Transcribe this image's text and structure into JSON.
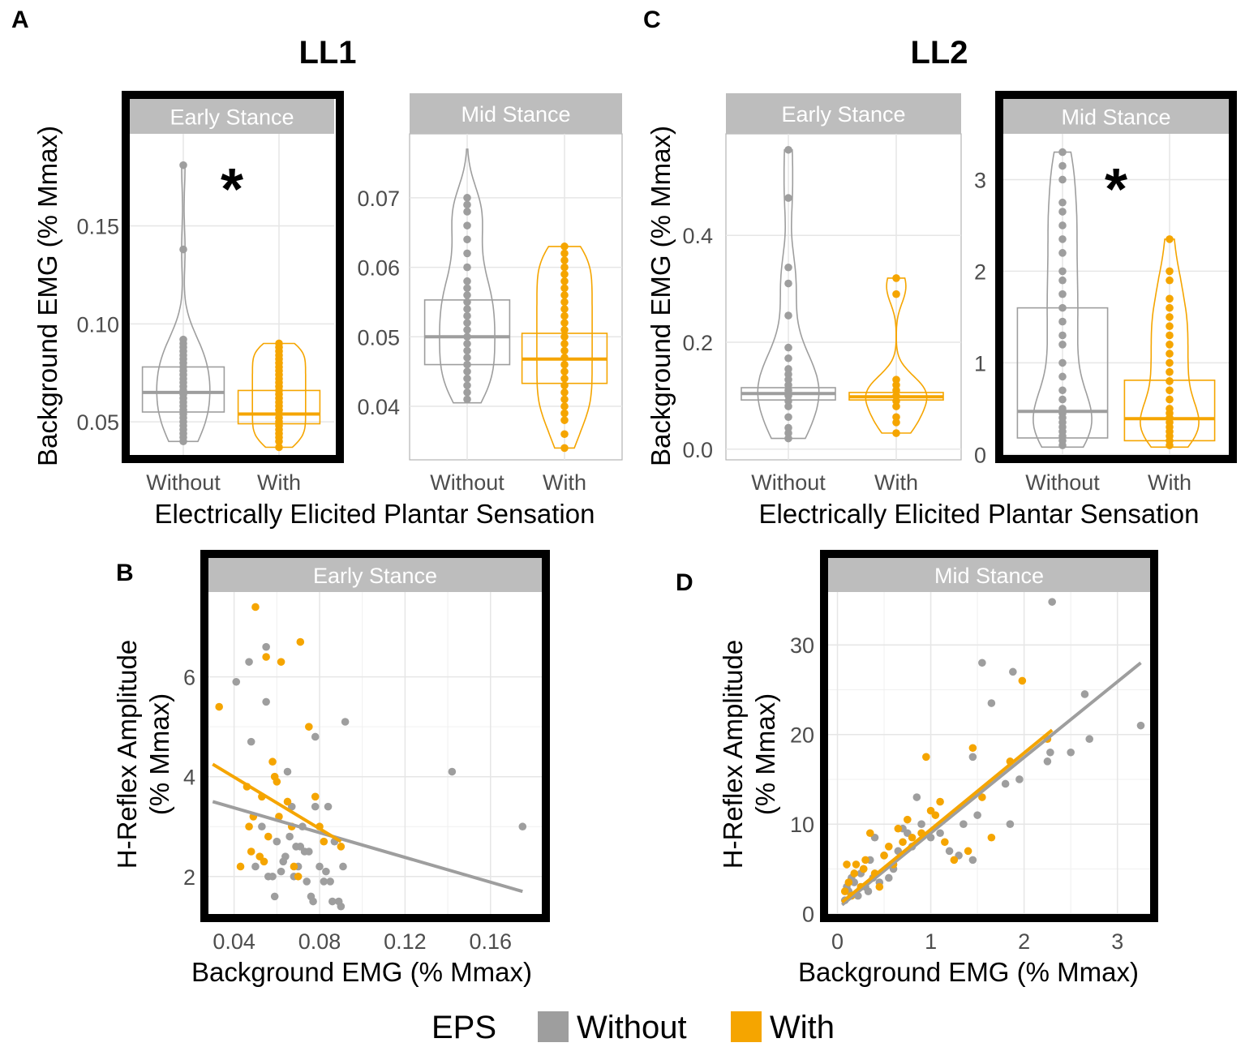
{
  "colors": {
    "without": "#9e9e9e",
    "with": "#f5a500",
    "strip": "#bdbdbd",
    "grid": "#e6e6e6",
    "axis": "#4d4d4d",
    "frame": "#000000"
  },
  "panel_letters": {
    "A": "A",
    "B": "B",
    "C": "C",
    "D": "D"
  },
  "groups": {
    "ll1": "LL1",
    "ll2": "LL2"
  },
  "significance_mark": "*",
  "shared_xlabel": "Electrically Elicited Plantar Sensation",
  "violin_ylabel": "Background EMG (% Mmax)",
  "scatter_ylabel_line1": "H-Reflex Amplitude",
  "scatter_ylabel_line2": "(% Mmax)",
  "scatter_xlabel": "Background EMG (% Mmax)",
  "legend": {
    "title": "EPS",
    "items": [
      {
        "label": "Without",
        "color": "#9e9e9e"
      },
      {
        "label": "With",
        "color": "#f5a500"
      }
    ]
  },
  "chart_data": [
    {
      "id": "A1",
      "type": "violin+box",
      "panel": "A",
      "strip": "Early Stance",
      "significant": true,
      "highlighted": true,
      "ylim": [
        0.031,
        0.197
      ],
      "yticks": [
        0.05,
        0.1,
        0.15
      ],
      "ytick_labels": [
        "0.05",
        "0.10",
        "0.15"
      ],
      "categories": [
        "Without",
        "With"
      ],
      "series": [
        {
          "name": "Without",
          "min": 0.04,
          "q1": 0.055,
          "median": 0.065,
          "q3": 0.078,
          "max": 0.181,
          "points": [
            0.04,
            0.042,
            0.044,
            0.046,
            0.048,
            0.05,
            0.052,
            0.054,
            0.056,
            0.058,
            0.06,
            0.062,
            0.064,
            0.066,
            0.068,
            0.07,
            0.072,
            0.074,
            0.076,
            0.078,
            0.08,
            0.082,
            0.084,
            0.086,
            0.088,
            0.09,
            0.092,
            0.138,
            0.181
          ]
        },
        {
          "name": "With",
          "min": 0.037,
          "q1": 0.049,
          "median": 0.054,
          "q3": 0.066,
          "max": 0.09,
          "points": [
            0.037,
            0.04,
            0.042,
            0.044,
            0.046,
            0.048,
            0.05,
            0.052,
            0.054,
            0.056,
            0.058,
            0.06,
            0.062,
            0.064,
            0.066,
            0.068,
            0.07,
            0.072,
            0.074,
            0.076,
            0.078,
            0.08,
            0.082,
            0.084,
            0.086,
            0.088,
            0.09
          ]
        }
      ]
    },
    {
      "id": "A2",
      "type": "violin+box",
      "panel": "A",
      "strip": "Mid Stance",
      "significant": false,
      "highlighted": false,
      "ylim": [
        0.0323,
        0.0792
      ],
      "yticks": [
        0.04,
        0.05,
        0.06,
        0.07
      ],
      "ytick_labels": [
        "0.04",
        "0.05",
        "0.06",
        "0.07"
      ],
      "categories": [
        "Without",
        "With"
      ],
      "series": [
        {
          "name": "Without",
          "min": 0.0405,
          "q1": 0.046,
          "median": 0.05,
          "q3": 0.0553,
          "max": 0.077,
          "points": [
            0.041,
            0.042,
            0.043,
            0.044,
            0.045,
            0.046,
            0.047,
            0.048,
            0.049,
            0.05,
            0.051,
            0.052,
            0.053,
            0.054,
            0.055,
            0.056,
            0.057,
            0.058,
            0.06,
            0.062,
            0.064,
            0.066,
            0.068,
            0.069,
            0.07
          ]
        },
        {
          "name": "With",
          "min": 0.034,
          "q1": 0.0433,
          "median": 0.0468,
          "q3": 0.0505,
          "max": 0.063,
          "points": [
            0.034,
            0.036,
            0.038,
            0.039,
            0.04,
            0.041,
            0.042,
            0.043,
            0.044,
            0.045,
            0.046,
            0.047,
            0.048,
            0.049,
            0.05,
            0.051,
            0.052,
            0.053,
            0.054,
            0.055,
            0.056,
            0.057,
            0.058,
            0.059,
            0.06,
            0.061,
            0.062,
            0.063
          ]
        }
      ]
    },
    {
      "id": "C1",
      "type": "violin+box",
      "panel": "C",
      "strip": "Early Stance",
      "significant": false,
      "highlighted": false,
      "ylim": [
        -0.02,
        0.59
      ],
      "yticks": [
        0.0,
        0.2,
        0.4
      ],
      "ytick_labels": [
        "0.0",
        "0.2",
        "0.4"
      ],
      "categories": [
        "Without",
        "With"
      ],
      "series": [
        {
          "name": "Without",
          "min": 0.02,
          "q1": 0.092,
          "median": 0.104,
          "q3": 0.115,
          "max": 0.56,
          "points": [
            0.02,
            0.03,
            0.04,
            0.06,
            0.08,
            0.09,
            0.1,
            0.11,
            0.12,
            0.13,
            0.14,
            0.15,
            0.17,
            0.19,
            0.25,
            0.31,
            0.34,
            0.47,
            0.56
          ]
        },
        {
          "name": "With",
          "min": 0.03,
          "q1": 0.092,
          "median": 0.098,
          "q3": 0.106,
          "max": 0.32,
          "points": [
            0.03,
            0.05,
            0.06,
            0.08,
            0.09,
            0.1,
            0.11,
            0.12,
            0.13,
            0.29,
            0.32
          ]
        }
      ]
    },
    {
      "id": "C2",
      "type": "violin+box",
      "panel": "C",
      "strip": "Mid Stance",
      "significant": true,
      "highlighted": true,
      "ylim": [
        -0.05,
        3.5
      ],
      "yticks": [
        0,
        1,
        2,
        3
      ],
      "ytick_labels": [
        "0",
        "1",
        "2",
        "3"
      ],
      "categories": [
        "Without",
        "With"
      ],
      "series": [
        {
          "name": "Without",
          "min": 0.08,
          "q1": 0.18,
          "median": 0.47,
          "q3": 1.6,
          "max": 3.3,
          "points": [
            0.1,
            0.15,
            0.2,
            0.25,
            0.3,
            0.35,
            0.4,
            0.45,
            0.5,
            0.6,
            0.7,
            0.85,
            1.0,
            1.2,
            1.3,
            1.45,
            1.6,
            1.75,
            1.9,
            2.0,
            2.2,
            2.35,
            2.5,
            2.65,
            2.75,
            3.0,
            3.15,
            3.3
          ]
        },
        {
          "name": "With",
          "min": 0.08,
          "q1": 0.15,
          "median": 0.39,
          "q3": 0.81,
          "max": 2.35,
          "points": [
            0.1,
            0.15,
            0.2,
            0.25,
            0.3,
            0.35,
            0.4,
            0.45,
            0.5,
            0.6,
            0.7,
            0.8,
            0.9,
            1.0,
            1.1,
            1.2,
            1.3,
            1.4,
            1.5,
            1.6,
            1.7,
            1.9,
            2.0,
            2.35
          ]
        }
      ]
    },
    {
      "id": "B",
      "type": "scatter",
      "panel": "B",
      "strip": "Early Stance",
      "highlighted": true,
      "xlim": [
        0.028,
        0.184
      ],
      "ylim": [
        1.2,
        7.7
      ],
      "xticks": [
        0.04,
        0.08,
        0.12,
        0.16
      ],
      "xtick_labels": [
        "0.04",
        "0.08",
        "0.12",
        "0.16"
      ],
      "yticks": [
        2,
        4,
        6
      ],
      "ytick_labels": [
        "2",
        "4",
        "6"
      ],
      "series": [
        {
          "name": "Without",
          "points": [
            [
              0.041,
              5.9
            ],
            [
              0.047,
              6.3
            ],
            [
              0.048,
              4.7
            ],
            [
              0.05,
              2.2
            ],
            [
              0.053,
              3.0
            ],
            [
              0.055,
              6.6
            ],
            [
              0.055,
              5.5
            ],
            [
              0.056,
              2.0
            ],
            [
              0.058,
              2.0
            ],
            [
              0.059,
              1.6
            ],
            [
              0.06,
              2.7
            ],
            [
              0.062,
              2.1
            ],
            [
              0.063,
              2.3
            ],
            [
              0.064,
              2.4
            ],
            [
              0.065,
              4.1
            ],
            [
              0.066,
              2.8
            ],
            [
              0.067,
              3.4
            ],
            [
              0.068,
              2.0
            ],
            [
              0.069,
              2.6
            ],
            [
              0.07,
              2.2
            ],
            [
              0.071,
              2.6
            ],
            [
              0.072,
              3.0
            ],
            [
              0.073,
              2.5
            ],
            [
              0.074,
              1.9
            ],
            [
              0.075,
              2.5
            ],
            [
              0.076,
              1.6
            ],
            [
              0.077,
              1.5
            ],
            [
              0.078,
              4.8
            ],
            [
              0.078,
              3.4
            ],
            [
              0.08,
              2.2
            ],
            [
              0.082,
              1.9
            ],
            [
              0.083,
              2.1
            ],
            [
              0.084,
              3.4
            ],
            [
              0.085,
              1.9
            ],
            [
              0.086,
              1.5
            ],
            [
              0.087,
              2.7
            ],
            [
              0.089,
              1.5
            ],
            [
              0.09,
              1.4
            ],
            [
              0.091,
              2.2
            ],
            [
              0.092,
              5.1
            ],
            [
              0.142,
              4.1
            ],
            [
              0.175,
              3.0
            ]
          ]
        },
        {
          "name": "With",
          "points": [
            [
              0.033,
              5.4
            ],
            [
              0.043,
              2.2
            ],
            [
              0.046,
              3.8
            ],
            [
              0.047,
              3.0
            ],
            [
              0.048,
              2.5
            ],
            [
              0.049,
              3.2
            ],
            [
              0.05,
              7.4
            ],
            [
              0.052,
              2.4
            ],
            [
              0.053,
              3.6
            ],
            [
              0.054,
              2.3
            ],
            [
              0.055,
              6.4
            ],
            [
              0.056,
              2.8
            ],
            [
              0.058,
              4.3
            ],
            [
              0.059,
              4.0
            ],
            [
              0.06,
              3.9
            ],
            [
              0.061,
              3.2
            ],
            [
              0.062,
              6.3
            ],
            [
              0.065,
              3.5
            ],
            [
              0.067,
              3.0
            ],
            [
              0.068,
              2.2
            ],
            [
              0.07,
              2.0
            ],
            [
              0.071,
              6.7
            ],
            [
              0.075,
              5.0
            ],
            [
              0.078,
              3.6
            ],
            [
              0.08,
              3.0
            ],
            [
              0.082,
              2.7
            ],
            [
              0.09,
              2.6
            ]
          ]
        }
      ],
      "trend_lines": [
        {
          "name": "Without",
          "x": [
            0.03,
            0.175
          ],
          "y": [
            3.5,
            1.7
          ]
        },
        {
          "name": "With",
          "x": [
            0.03,
            0.09
          ],
          "y": [
            4.25,
            2.7
          ]
        }
      ]
    },
    {
      "id": "D",
      "type": "scatter",
      "panel": "D",
      "strip": "Mid Stance",
      "highlighted": true,
      "xlim": [
        -0.1,
        3.35
      ],
      "ylim": [
        -0.3,
        35.9
      ],
      "xticks": [
        0,
        1,
        2,
        3
      ],
      "xtick_labels": [
        "0",
        "1",
        "2",
        "3"
      ],
      "yticks": [
        0,
        10,
        20,
        30
      ],
      "ytick_labels": [
        "0",
        "10",
        "20",
        "30"
      ],
      "series": [
        {
          "name": "Without",
          "points": [
            [
              0.08,
              1.5
            ],
            [
              0.1,
              3.0
            ],
            [
              0.12,
              2.5
            ],
            [
              0.15,
              4.0
            ],
            [
              0.18,
              3.5
            ],
            [
              0.22,
              2.0
            ],
            [
              0.25,
              4.5
            ],
            [
              0.28,
              5.0
            ],
            [
              0.3,
              3.0
            ],
            [
              0.33,
              2.5
            ],
            [
              0.35,
              6.0
            ],
            [
              0.38,
              4.0
            ],
            [
              0.4,
              8.5
            ],
            [
              0.45,
              3.5
            ],
            [
              0.5,
              6.5
            ],
            [
              0.55,
              4.0
            ],
            [
              0.6,
              5.0
            ],
            [
              0.65,
              7.0
            ],
            [
              0.7,
              9.5
            ],
            [
              0.75,
              9.0
            ],
            [
              0.8,
              7.5
            ],
            [
              0.85,
              13.0
            ],
            [
              0.9,
              10.0
            ],
            [
              1.0,
              8.5
            ],
            [
              1.1,
              9.0
            ],
            [
              1.2,
              7.0
            ],
            [
              1.3,
              6.5
            ],
            [
              1.35,
              10.0
            ],
            [
              1.45,
              6.0
            ],
            [
              1.45,
              17.5
            ],
            [
              1.5,
              11.0
            ],
            [
              1.55,
              28.0
            ],
            [
              1.65,
              23.5
            ],
            [
              1.8,
              14.5
            ],
            [
              1.85,
              10.0
            ],
            [
              1.88,
              27.0
            ],
            [
              1.95,
              15.0
            ],
            [
              2.25,
              17.0
            ],
            [
              2.28,
              18.0
            ],
            [
              2.3,
              34.8
            ],
            [
              2.5,
              18.0
            ],
            [
              2.65,
              24.5
            ],
            [
              2.7,
              19.5
            ],
            [
              3.25,
              21.0
            ]
          ]
        },
        {
          "name": "With",
          "points": [
            [
              0.08,
              2.5
            ],
            [
              0.1,
              5.5
            ],
            [
              0.12,
              3.5
            ],
            [
              0.15,
              2.0
            ],
            [
              0.18,
              4.5
            ],
            [
              0.2,
              5.5
            ],
            [
              0.25,
              3.0
            ],
            [
              0.28,
              5.0
            ],
            [
              0.3,
              6.0
            ],
            [
              0.35,
              9.0
            ],
            [
              0.4,
              4.5
            ],
            [
              0.45,
              3.0
            ],
            [
              0.5,
              6.5
            ],
            [
              0.55,
              7.5
            ],
            [
              0.6,
              5.5
            ],
            [
              0.65,
              9.5
            ],
            [
              0.7,
              8.0
            ],
            [
              0.75,
              10.5
            ],
            [
              0.8,
              8.5
            ],
            [
              0.9,
              9.0
            ],
            [
              0.95,
              17.5
            ],
            [
              1.0,
              11.5
            ],
            [
              1.05,
              11.0
            ],
            [
              1.1,
              12.5
            ],
            [
              1.15,
              8.0
            ],
            [
              1.25,
              6.0
            ],
            [
              1.4,
              7.0
            ],
            [
              1.45,
              18.5
            ],
            [
              1.55,
              13.0
            ],
            [
              1.65,
              8.5
            ],
            [
              1.85,
              17.0
            ],
            [
              1.98,
              26.0
            ],
            [
              2.25,
              19.5
            ]
          ]
        }
      ],
      "trend_lines": [
        {
          "name": "Without",
          "x": [
            0.05,
            3.25
          ],
          "y": [
            1.0,
            28.0
          ]
        },
        {
          "name": "With",
          "x": [
            0.05,
            2.3
          ],
          "y": [
            1.3,
            20.5
          ]
        }
      ]
    }
  ]
}
